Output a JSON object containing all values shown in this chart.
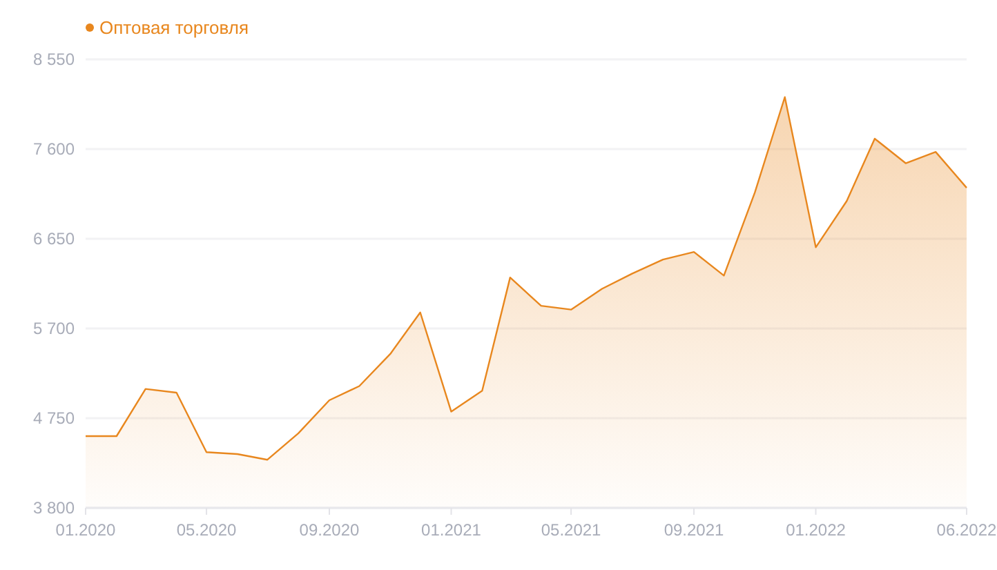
{
  "chart_data": {
    "type": "area",
    "x": [
      "2020-01",
      "2020-02",
      "2020-03",
      "2020-04",
      "2020-05",
      "2020-06",
      "2020-07",
      "2020-08",
      "2020-09",
      "2020-10",
      "2020-11",
      "2020-12",
      "2021-01",
      "2021-02",
      "2021-03",
      "2021-04",
      "2021-05",
      "2021-06",
      "2021-07",
      "2021-08",
      "2021-09",
      "2021-10",
      "2021-11",
      "2021-12",
      "2022-01",
      "2022-02",
      "2022-03",
      "2022-04",
      "2022-05",
      "2022-06"
    ],
    "series": [
      {
        "name": "Оптовая торговля",
        "color": "#e8871e",
        "values": [
          4560,
          4560,
          5060,
          5020,
          4390,
          4370,
          4310,
          4590,
          4940,
          5090,
          5430,
          5870,
          4820,
          5040,
          6240,
          5940,
          5900,
          6120,
          6280,
          6430,
          6510,
          6260,
          7140,
          8150,
          6560,
          7050,
          7710,
          7450,
          7570,
          7190
        ]
      }
    ],
    "xlim": [
      "2020-01",
      "2022-06"
    ],
    "xticks": [
      {
        "value": "2020-01",
        "label": "01.2020"
      },
      {
        "value": "2020-05",
        "label": "05.2020"
      },
      {
        "value": "2020-09",
        "label": "09.2020"
      },
      {
        "value": "2021-01",
        "label": "01.2021"
      },
      {
        "value": "2021-05",
        "label": "05.2021"
      },
      {
        "value": "2021-09",
        "label": "09.2021"
      },
      {
        "value": "2022-01",
        "label": "01.2022"
      },
      {
        "value": "2022-06",
        "label": "06.2022"
      }
    ],
    "ylim": [
      3800,
      8550
    ],
    "yticks": [
      {
        "value": 3800,
        "label": "3 800"
      },
      {
        "value": 4750,
        "label": "4 750"
      },
      {
        "value": 5700,
        "label": "5 700"
      },
      {
        "value": 6650,
        "label": "6 650"
      },
      {
        "value": 7600,
        "label": "7 600"
      },
      {
        "value": 8550,
        "label": "8 550"
      }
    ],
    "grid": "y",
    "legend": "top left",
    "marker": "none",
    "line_style": "solid"
  }
}
